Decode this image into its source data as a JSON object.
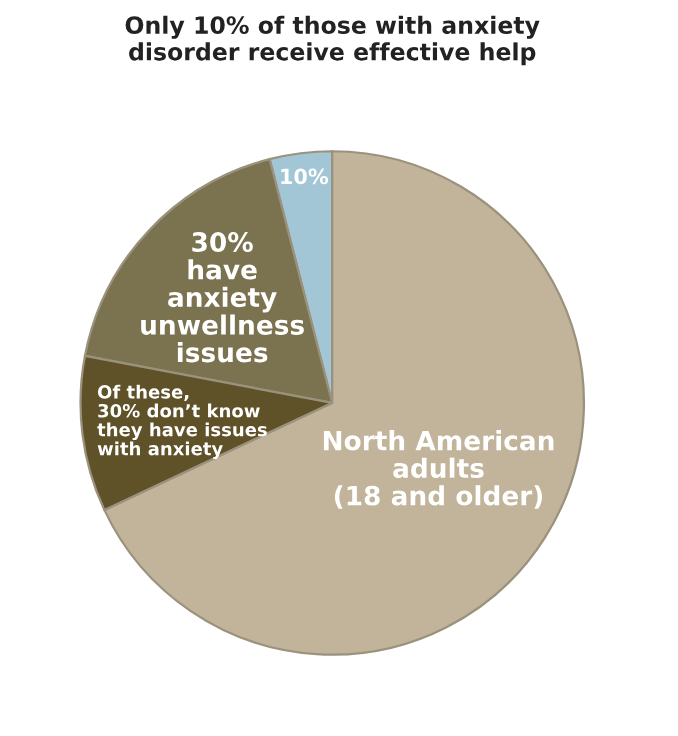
{
  "chart_data": {
    "type": "pie",
    "title": "Only 10% of those with anxiety\ndisorder receive effective help",
    "categories": [
      "10%",
      "30%\nhave\nanxiety\nunwellness\nissues",
      "Of these,\n30% don’t know\nthey have issues\nwith anxiety",
      "North American\nadults\n(18 and older)"
    ],
    "values": [
      4,
      18,
      10,
      68
    ],
    "colors": [
      "#a3c6d6",
      "#7b7350",
      "#5f5229",
      "#c1b49a"
    ]
  }
}
